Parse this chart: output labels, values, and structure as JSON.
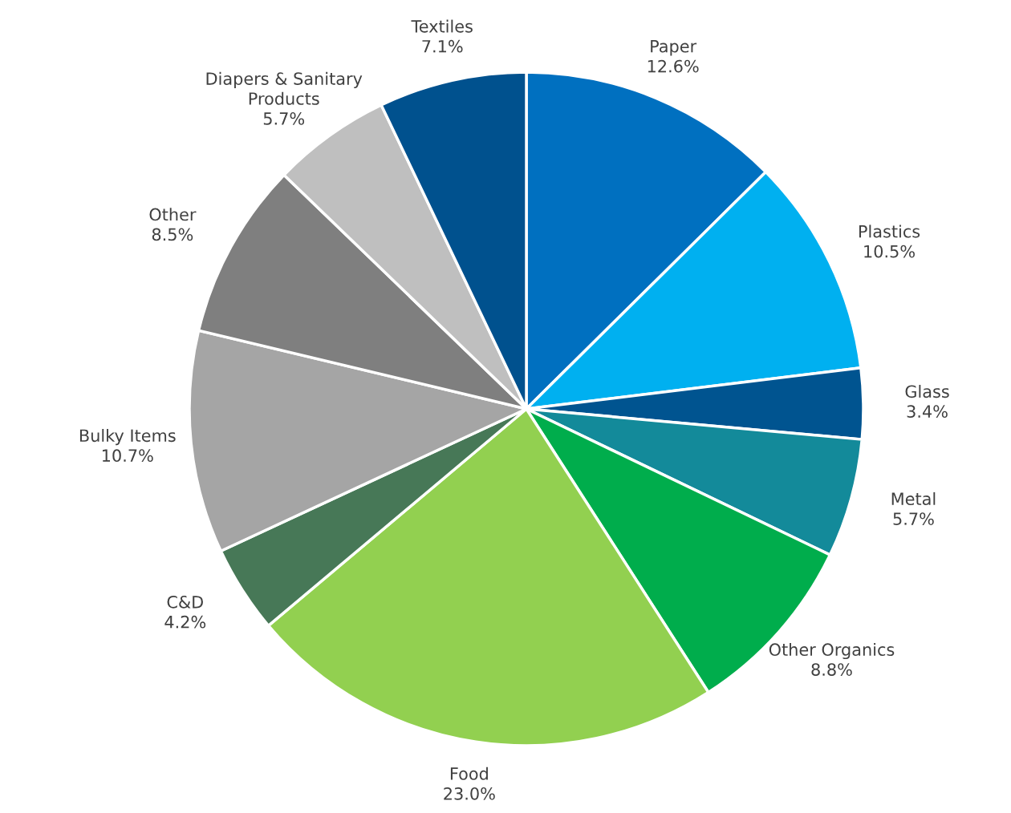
{
  "chart_data": {
    "type": "pie",
    "categories": [
      "Paper",
      "Plastics",
      "Glass",
      "Metal",
      "Other Organics",
      "Food",
      "C&D",
      "Bulky Items",
      "Other",
      "Diapers & Sanitary\nProducts",
      "Textiles"
    ],
    "values": [
      12.6,
      10.5,
      3.4,
      5.7,
      8.8,
      23.0,
      4.2,
      10.7,
      8.5,
      5.7,
      7.1
    ],
    "value_labels": [
      "12.6%",
      "10.5%",
      "3.4%",
      "5.7%",
      "8.8%",
      "23.0%",
      "4.2%",
      "10.7%",
      "8.5%",
      "5.7%",
      "7.1%"
    ],
    "colors": [
      "#0070c0",
      "#00b0f0",
      "#005490",
      "#138a9a",
      "#00ad4c",
      "#92d050",
      "#477857",
      "#a5a5a5",
      "#7f7f7f",
      "#bfbfbf",
      "#00518e"
    ],
    "legend": false
  }
}
